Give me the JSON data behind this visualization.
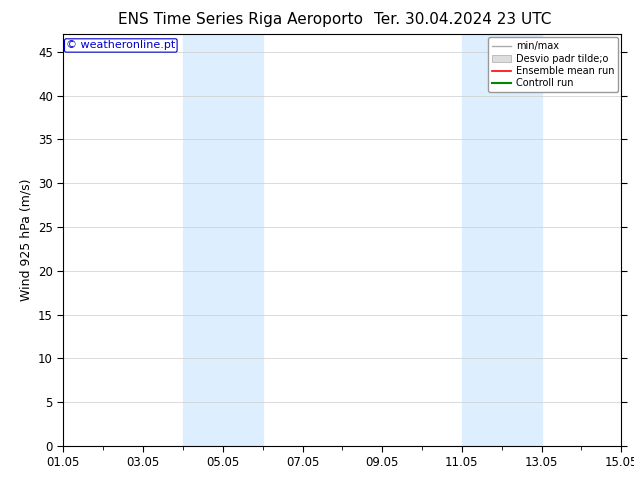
{
  "title_left": "ENS Time Series Riga Aeroporto",
  "title_right": "Ter. 30.04.2024 23 UTC",
  "ylabel": "Wind 925 hPa (m/s)",
  "watermark": "© weatheronline.pt",
  "watermark_color": "#0000cc",
  "ylim": [
    0,
    47
  ],
  "yticks": [
    0,
    5,
    10,
    15,
    20,
    25,
    30,
    35,
    40,
    45
  ],
  "x_tick_labels": [
    "01.05",
    "03.05",
    "05.05",
    "07.05",
    "09.05",
    "11.05",
    "13.05",
    "15.05"
  ],
  "x_tick_positions": [
    0,
    2,
    4,
    6,
    8,
    10,
    12,
    14
  ],
  "xlim": [
    0,
    14
  ],
  "shaded_bands": [
    {
      "x_start": 3.0,
      "x_end": 5.0,
      "color": "#ddeeff"
    },
    {
      "x_start": 10.0,
      "x_end": 12.0,
      "color": "#ddeeff"
    }
  ],
  "legend_labels": [
    "min/max",
    "Desvio padr tilde;o",
    "Ensemble mean run",
    "Controll run"
  ],
  "legend_colors_line": [
    "#aaaaaa",
    "#cccccc",
    "#ff0000",
    "#008800"
  ],
  "background_color": "#ffffff",
  "plot_bg_color": "#ffffff",
  "grid_color": "#cccccc",
  "tick_label_fontsize": 8.5,
  "axis_label_fontsize": 9,
  "title_fontsize": 11
}
